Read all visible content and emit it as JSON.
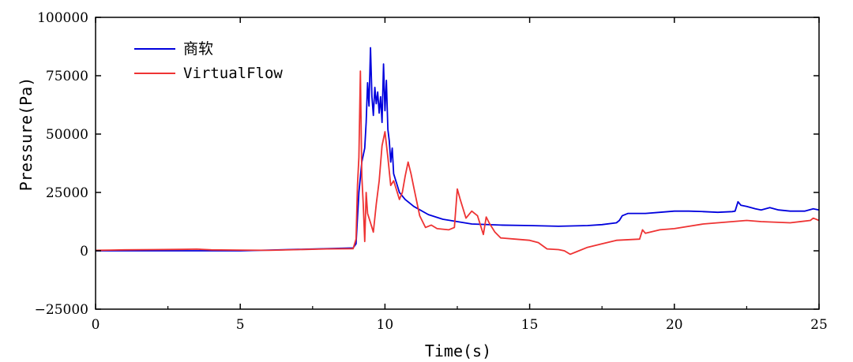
{
  "chart_data": {
    "type": "line",
    "xlabel": "Time(s)",
    "ylabel": "Pressure(Pa)",
    "xlim": [
      0,
      25
    ],
    "ylim": [
      -25000,
      100000
    ],
    "xticks": [
      0,
      5,
      10,
      15,
      20,
      25
    ],
    "yticks": [
      -25000,
      0,
      25000,
      50000,
      75000,
      100000
    ],
    "xtick_labels": [
      "0",
      "5",
      "10",
      "15",
      "20",
      "25"
    ],
    "ytick_labels": [
      "−25000",
      "0",
      "25000",
      "50000",
      "75000",
      "100000"
    ],
    "grid": false,
    "legend_position": "top-left",
    "series": [
      {
        "name": "商软",
        "color": "#0000dd",
        "points": [
          [
            0,
            0
          ],
          [
            1,
            0
          ],
          [
            2,
            0
          ],
          [
            3,
            0
          ],
          [
            4,
            0
          ],
          [
            5,
            0
          ],
          [
            6,
            300
          ],
          [
            7,
            600
          ],
          [
            8,
            900
          ],
          [
            8.9,
            1200
          ],
          [
            9.0,
            3000
          ],
          [
            9.1,
            25000
          ],
          [
            9.2,
            38000
          ],
          [
            9.3,
            44000
          ],
          [
            9.35,
            55000
          ],
          [
            9.4,
            72000
          ],
          [
            9.45,
            62000
          ],
          [
            9.5,
            87000
          ],
          [
            9.55,
            66000
          ],
          [
            9.6,
            58000
          ],
          [
            9.65,
            70000
          ],
          [
            9.7,
            63000
          ],
          [
            9.75,
            68000
          ],
          [
            9.8,
            59000
          ],
          [
            9.85,
            66000
          ],
          [
            9.9,
            55000
          ],
          [
            9.95,
            80000
          ],
          [
            10.0,
            60000
          ],
          [
            10.05,
            73000
          ],
          [
            10.1,
            52000
          ],
          [
            10.15,
            47000
          ],
          [
            10.2,
            38000
          ],
          [
            10.25,
            44000
          ],
          [
            10.3,
            33000
          ],
          [
            10.4,
            29000
          ],
          [
            10.5,
            25000
          ],
          [
            10.7,
            22000
          ],
          [
            11.0,
            19000
          ],
          [
            11.5,
            15500
          ],
          [
            12.0,
            13500
          ],
          [
            13.0,
            11500
          ],
          [
            14.0,
            11000
          ],
          [
            15.0,
            10800
          ],
          [
            16.0,
            10500
          ],
          [
            17.0,
            10800
          ],
          [
            17.5,
            11200
          ],
          [
            18.0,
            12000
          ],
          [
            18.1,
            13000
          ],
          [
            18.2,
            15000
          ],
          [
            18.4,
            16000
          ],
          [
            19.0,
            16000
          ],
          [
            19.5,
            16500
          ],
          [
            20.0,
            17000
          ],
          [
            20.5,
            17000
          ],
          [
            21.0,
            16800
          ],
          [
            21.5,
            16500
          ],
          [
            22.0,
            16800
          ],
          [
            22.1,
            17000
          ],
          [
            22.2,
            21000
          ],
          [
            22.3,
            19500
          ],
          [
            22.5,
            19000
          ],
          [
            22.8,
            18000
          ],
          [
            23.0,
            17500
          ],
          [
            23.3,
            18500
          ],
          [
            23.6,
            17500
          ],
          [
            24.0,
            17000
          ],
          [
            24.5,
            17000
          ],
          [
            24.8,
            18000
          ],
          [
            25.0,
            17500
          ]
        ]
      },
      {
        "name": "VirtualFlow",
        "color": "#ee3333",
        "points": [
          [
            0,
            200
          ],
          [
            0.5,
            300
          ],
          [
            1,
            400
          ],
          [
            2,
            500
          ],
          [
            3,
            600
          ],
          [
            3.5,
            700
          ],
          [
            4,
            400
          ],
          [
            5,
            300
          ],
          [
            6,
            200
          ],
          [
            7,
            500
          ],
          [
            8,
            800
          ],
          [
            8.9,
            900
          ],
          [
            9.0,
            5000
          ],
          [
            9.05,
            28000
          ],
          [
            9.1,
            40000
          ],
          [
            9.15,
            77000
          ],
          [
            9.2,
            32000
          ],
          [
            9.25,
            20000
          ],
          [
            9.3,
            4000
          ],
          [
            9.35,
            25000
          ],
          [
            9.4,
            16000
          ],
          [
            9.5,
            12000
          ],
          [
            9.6,
            8000
          ],
          [
            9.7,
            20000
          ],
          [
            9.8,
            30000
          ],
          [
            9.9,
            45000
          ],
          [
            10.0,
            51000
          ],
          [
            10.1,
            40000
          ],
          [
            10.2,
            28000
          ],
          [
            10.3,
            30000
          ],
          [
            10.4,
            26000
          ],
          [
            10.5,
            22000
          ],
          [
            10.6,
            25000
          ],
          [
            10.7,
            32000
          ],
          [
            10.8,
            38000
          ],
          [
            10.9,
            33000
          ],
          [
            11.0,
            27000
          ],
          [
            11.2,
            15000
          ],
          [
            11.4,
            10000
          ],
          [
            11.6,
            11000
          ],
          [
            11.8,
            9500
          ],
          [
            12.2,
            9000
          ],
          [
            12.4,
            10000
          ],
          [
            12.5,
            26500
          ],
          [
            12.6,
            22000
          ],
          [
            12.8,
            14000
          ],
          [
            13.0,
            17000
          ],
          [
            13.2,
            15000
          ],
          [
            13.4,
            7000
          ],
          [
            13.5,
            14500
          ],
          [
            13.6,
            12000
          ],
          [
            13.8,
            8000
          ],
          [
            14.0,
            5500
          ],
          [
            14.5,
            5000
          ],
          [
            15.0,
            4500
          ],
          [
            15.3,
            3500
          ],
          [
            15.6,
            800
          ],
          [
            16.0,
            500
          ],
          [
            16.2,
            0
          ],
          [
            16.4,
            -1500
          ],
          [
            16.6,
            -500
          ],
          [
            17.0,
            1500
          ],
          [
            17.5,
            3000
          ],
          [
            18.0,
            4500
          ],
          [
            18.8,
            5000
          ],
          [
            18.9,
            9000
          ],
          [
            19.0,
            7500
          ],
          [
            19.5,
            9000
          ],
          [
            20.0,
            9500
          ],
          [
            21.0,
            11500
          ],
          [
            22.0,
            12500
          ],
          [
            22.5,
            13000
          ],
          [
            23.0,
            12500
          ],
          [
            24.0,
            12000
          ],
          [
            24.7,
            13000
          ],
          [
            24.8,
            14000
          ],
          [
            25.0,
            13000
          ]
        ]
      }
    ]
  }
}
